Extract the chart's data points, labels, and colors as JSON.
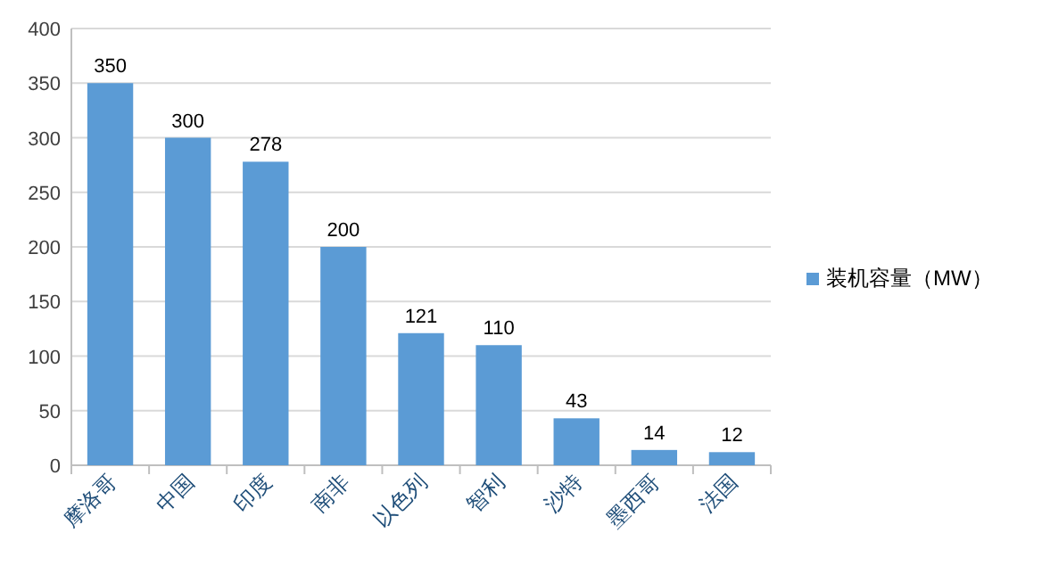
{
  "chart_data": {
    "type": "bar",
    "categories": [
      "摩洛哥",
      "中国",
      "印度",
      "南非",
      "以色列",
      "智利",
      "沙特",
      "墨西哥",
      "法国"
    ],
    "series": [
      {
        "name": "装机容量（MW）",
        "color": "#5b9bd5",
        "values": [
          350,
          300,
          278,
          200,
          121,
          110,
          43,
          14,
          12
        ]
      }
    ],
    "ylim": [
      0,
      400
    ],
    "yticks": [
      0,
      50,
      100,
      150,
      200,
      250,
      300,
      350,
      400
    ],
    "grid": "y",
    "legend": "right",
    "data_labels": true
  }
}
